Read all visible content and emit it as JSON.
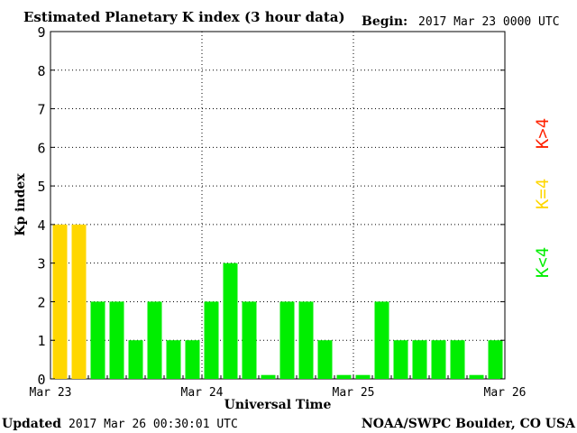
{
  "header": {
    "title": "Estimated Planetary K index (3 hour data)",
    "begin_label": "Begin:",
    "begin_value": "2017 Mar 23 0000 UTC"
  },
  "footer": {
    "updated_label": "Updated",
    "updated_value": "2017 Mar 26 00:30:01 UTC",
    "source": "NOAA/SWPC Boulder, CO USA"
  },
  "legend": {
    "high": "K>4",
    "equal": "K=4",
    "low": "K<4"
  },
  "colors": {
    "low": "#00ee00",
    "equal": "#ffd700",
    "high": "#ff2200",
    "grid": "#000000"
  },
  "chart_data": {
    "type": "bar",
    "title": "Estimated Planetary K index (3 hour data)",
    "xlabel": "Universal Time",
    "ylabel": "Kp index",
    "ylim": [
      0,
      9
    ],
    "yticks": [
      "0",
      "1",
      "2",
      "3",
      "4",
      "5",
      "6",
      "7",
      "8",
      "9"
    ],
    "xticks": [
      "Mar 23",
      "Mar 24",
      "Mar 25",
      "Mar 26"
    ],
    "grid": "dotted",
    "values": [
      4,
      4,
      2,
      2,
      1,
      2,
      1,
      1,
      2,
      3,
      2,
      0,
      2,
      2,
      1,
      0,
      0,
      2,
      1,
      1,
      1,
      1,
      0,
      1
    ]
  }
}
